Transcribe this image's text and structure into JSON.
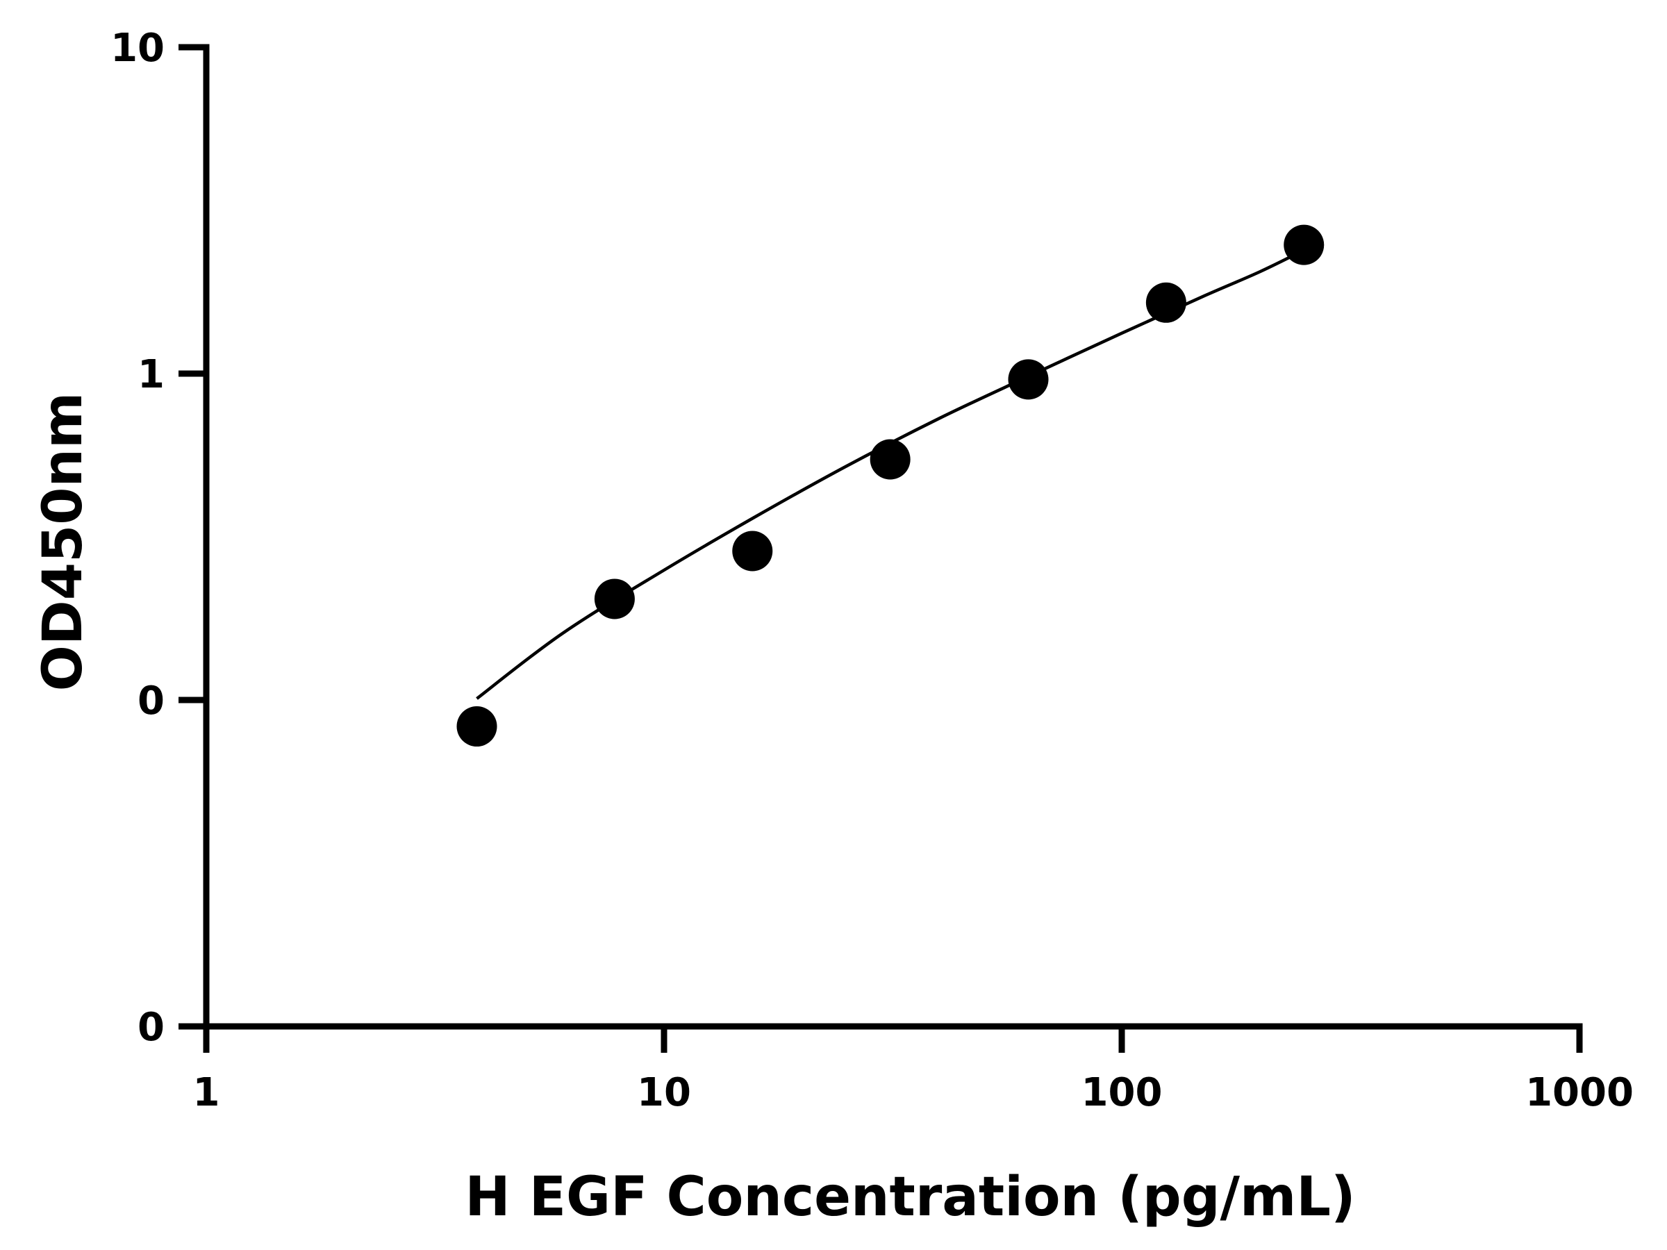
{
  "chart_data": {
    "type": "scatter",
    "xlabel": "H EGF Concentration (pg/mL)",
    "ylabel": "OD450nm",
    "xscale": "log",
    "yscale": "log",
    "xlim": [
      1,
      1000
    ],
    "ylim": [
      0.01,
      10
    ],
    "x_ticks": [
      {
        "value": 1,
        "label": "1"
      },
      {
        "value": 10,
        "label": "10"
      },
      {
        "value": 100,
        "label": "100"
      },
      {
        "value": 1000,
        "label": "1000"
      }
    ],
    "y_ticks": [
      {
        "value": 0.01,
        "label": "0"
      },
      {
        "value": 0.1,
        "label": "0"
      },
      {
        "value": 1,
        "label": "1"
      },
      {
        "value": 10,
        "label": "10"
      }
    ],
    "grid": false,
    "legend": "none",
    "colors": {
      "points": "#000000",
      "curve": "#000000",
      "axes": "#000000"
    },
    "series": [
      {
        "points": [
          {
            "x": 3.9,
            "y": 0.083
          },
          {
            "x": 7.8,
            "y": 0.204
          },
          {
            "x": 15.6,
            "y": 0.286
          },
          {
            "x": 31.2,
            "y": 0.546
          },
          {
            "x": 62.5,
            "y": 0.96
          },
          {
            "x": 125,
            "y": 1.65
          },
          {
            "x": 250,
            "y": 2.48
          }
        ]
      }
    ],
    "fit_curve": {
      "x": [
        3.9,
        6,
        10,
        15.6,
        25,
        40,
        62.5,
        100,
        150,
        200,
        250
      ],
      "y": [
        0.101,
        0.16,
        0.25,
        0.36,
        0.52,
        0.73,
        0.98,
        1.33,
        1.72,
        2.05,
        2.39
      ]
    }
  }
}
